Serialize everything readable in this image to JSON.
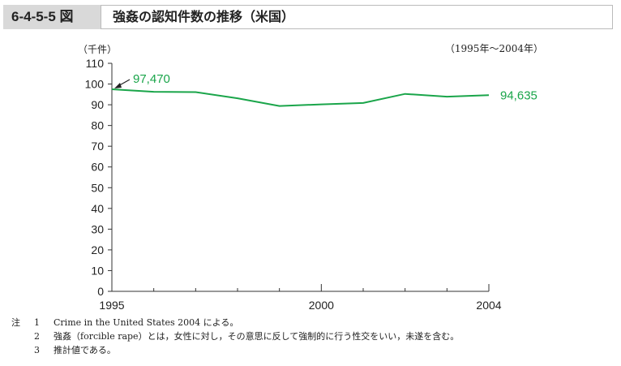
{
  "figure": {
    "number": "6-4-5-5 図",
    "title": "強姦の認知件数の推移（米国）"
  },
  "unit_label": "（千件）",
  "period_label": "（1995年～2004年）",
  "chart_data": {
    "type": "line",
    "x": [
      1995,
      1996,
      1997,
      1998,
      1999,
      2000,
      2001,
      2002,
      2003,
      2004
    ],
    "series": [
      {
        "values": [
          97.47,
          96.25,
          96.12,
          93.1,
          89.41,
          90.18,
          90.86,
          95.24,
          93.88,
          94.635
        ]
      }
    ],
    "ylim": [
      0,
      110
    ],
    "yticks": [
      0,
      10,
      20,
      30,
      40,
      50,
      60,
      70,
      80,
      90,
      100,
      110
    ],
    "xlim": [
      1995,
      2004
    ],
    "xtick_labels": [
      "1995",
      "2000",
      "2004"
    ],
    "annotations": [
      {
        "text": "97,470",
        "x": 1995
      },
      {
        "text": "94,635",
        "x": 2004
      }
    ],
    "line_color": "#1aa54a",
    "grid": false
  },
  "notes": {
    "head": "注",
    "items": [
      {
        "num": "1",
        "text": "Crime in the United States 2004 による。"
      },
      {
        "num": "2",
        "text": "強姦（forcible rape）とは，女性に対し，その意思に反して強制的に行う性交をいい，未遂を含む。"
      },
      {
        "num": "3",
        "text": "推計値である。"
      }
    ]
  }
}
